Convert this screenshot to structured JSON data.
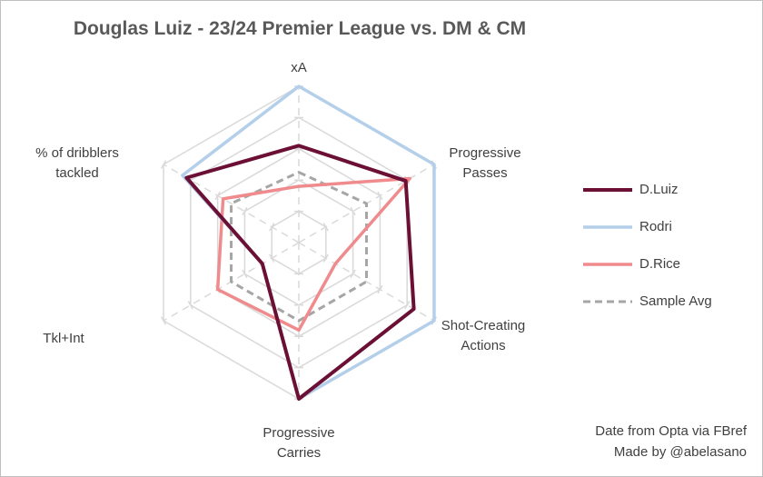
{
  "chart_data": {
    "type": "radar",
    "title": "Douglas  Luiz - 23/24 Premier League vs. DM & CM",
    "axes": [
      [
        "xA"
      ],
      [
        "Progressive",
        "Passes"
      ],
      [
        "Shot-Creating",
        "Actions"
      ],
      [
        "Progressive",
        "Carries"
      ],
      [
        "Tkl+Int"
      ],
      [
        "% of dribblers",
        "tackled"
      ]
    ],
    "rlim": [
      0,
      1
    ],
    "rings": 5,
    "grid": true,
    "legend_position": "right",
    "series": [
      {
        "name": "D.Luiz",
        "color": "#6b0f35",
        "style": "solid",
        "values": [
          0.62,
          0.79,
          0.85,
          1.0,
          0.27,
          0.83
        ]
      },
      {
        "name": "Rodri",
        "color": "#b4cfe9",
        "style": "solid",
        "values": [
          1.0,
          1.0,
          1.0,
          1.0,
          0.27,
          0.86
        ]
      },
      {
        "name": "D.Rice",
        "color": "#f08b8d",
        "style": "solid",
        "values": [
          0.36,
          0.82,
          0.27,
          0.56,
          0.6,
          0.56
        ]
      },
      {
        "name": "Sample Avg",
        "color": "#a6a6a6",
        "style": "dashed",
        "values": [
          0.45,
          0.5,
          0.5,
          0.5,
          0.5,
          0.5
        ]
      }
    ]
  },
  "credit": {
    "line1": "Date from Opta via FBref",
    "line2": "Made by @abelasano"
  }
}
